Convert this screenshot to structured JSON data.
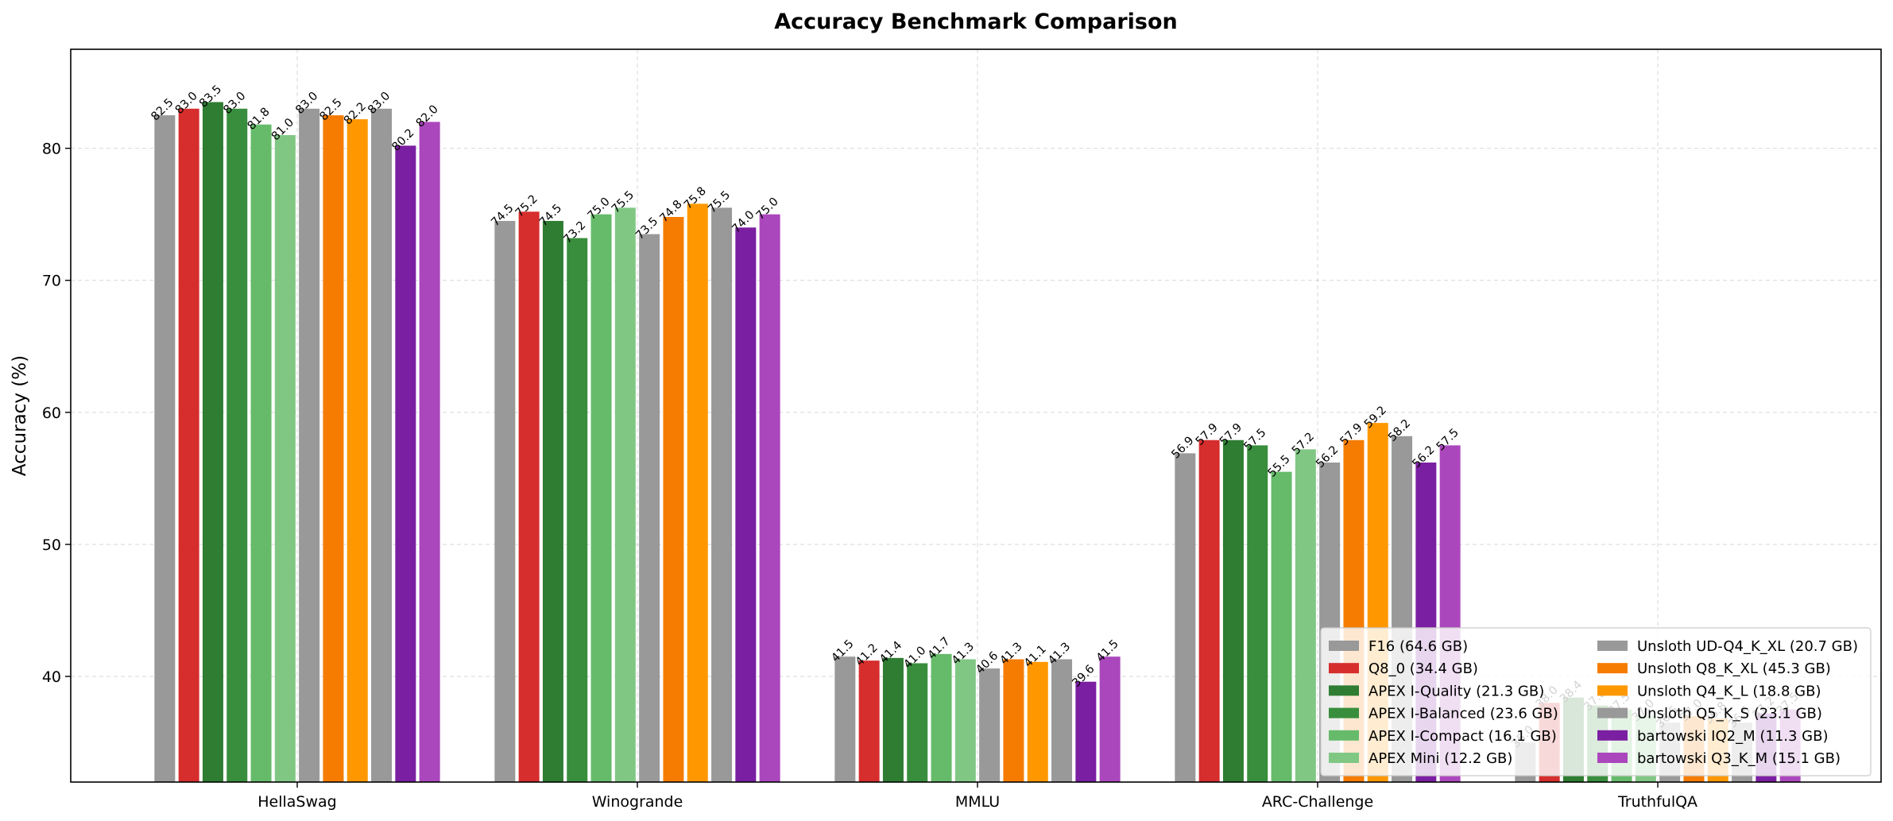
{
  "chart_data": {
    "type": "bar",
    "title": "Accuracy Benchmark Comparison",
    "xlabel": "",
    "ylabel": "Accuracy (%)",
    "ylim": [
      32,
      87.5
    ],
    "yticks": [
      40,
      50,
      60,
      70,
      80
    ],
    "grid": true,
    "legend_position": "lower-right",
    "categories": [
      "HellaSwag",
      "Winogrande",
      "MMLU",
      "ARC-Challenge",
      "TruthfulQA"
    ],
    "series": [
      {
        "name": "F16 (64.6 GB)",
        "color": "#999999",
        "values": [
          82.5,
          74.5,
          41.5,
          56.9,
          35.0
        ]
      },
      {
        "name": "Q8_0 (34.4 GB)",
        "color": "#d62d2d",
        "values": [
          83.0,
          75.2,
          41.2,
          57.9,
          38.0
        ]
      },
      {
        "name": "APEX I-Quality (21.3 GB)",
        "color": "#2e7d32",
        "values": [
          83.5,
          74.5,
          41.4,
          57.9,
          38.4
        ]
      },
      {
        "name": "APEX I-Balanced (23.6 GB)",
        "color": "#388e3c",
        "values": [
          83.0,
          73.2,
          41.0,
          57.5,
          37.8
        ]
      },
      {
        "name": "APEX I-Compact (16.1 GB)",
        "color": "#66bb6a",
        "values": [
          81.8,
          75.0,
          41.7,
          55.5,
          37.5
        ]
      },
      {
        "name": "APEX Mini (12.2 GB)",
        "color": "#81c784",
        "values": [
          81.0,
          75.5,
          41.3,
          57.2,
          37.0
        ]
      },
      {
        "name": "Unsloth UD-Q4_K_XL (20.7 GB)",
        "color": "#999999",
        "values": [
          83.0,
          73.5,
          40.6,
          56.2,
          36.5
        ]
      },
      {
        "name": "Unsloth Q8_K_XL (45.3 GB)",
        "color": "#f57c00",
        "values": [
          82.5,
          74.8,
          41.3,
          57.9,
          37.0
        ]
      },
      {
        "name": "Unsloth Q4_K_L (18.8 GB)",
        "color": "#ff9800",
        "values": [
          82.2,
          75.8,
          41.1,
          59.2,
          36.8
        ]
      },
      {
        "name": "Unsloth Q5_K_S (23.1 GB)",
        "color": "#999999",
        "values": [
          83.0,
          75.5,
          41.3,
          58.2,
          36.5
        ]
      },
      {
        "name": "bartowski IQ2_M (11.3 GB)",
        "color": "#7b1fa2",
        "values": [
          80.2,
          74.0,
          39.6,
          56.2,
          37.2
        ]
      },
      {
        "name": "bartowski Q3_K_M (15.1 GB)",
        "color": "#ab47bc",
        "values": [
          82.0,
          75.0,
          41.5,
          57.5,
          37.5
        ]
      }
    ]
  }
}
